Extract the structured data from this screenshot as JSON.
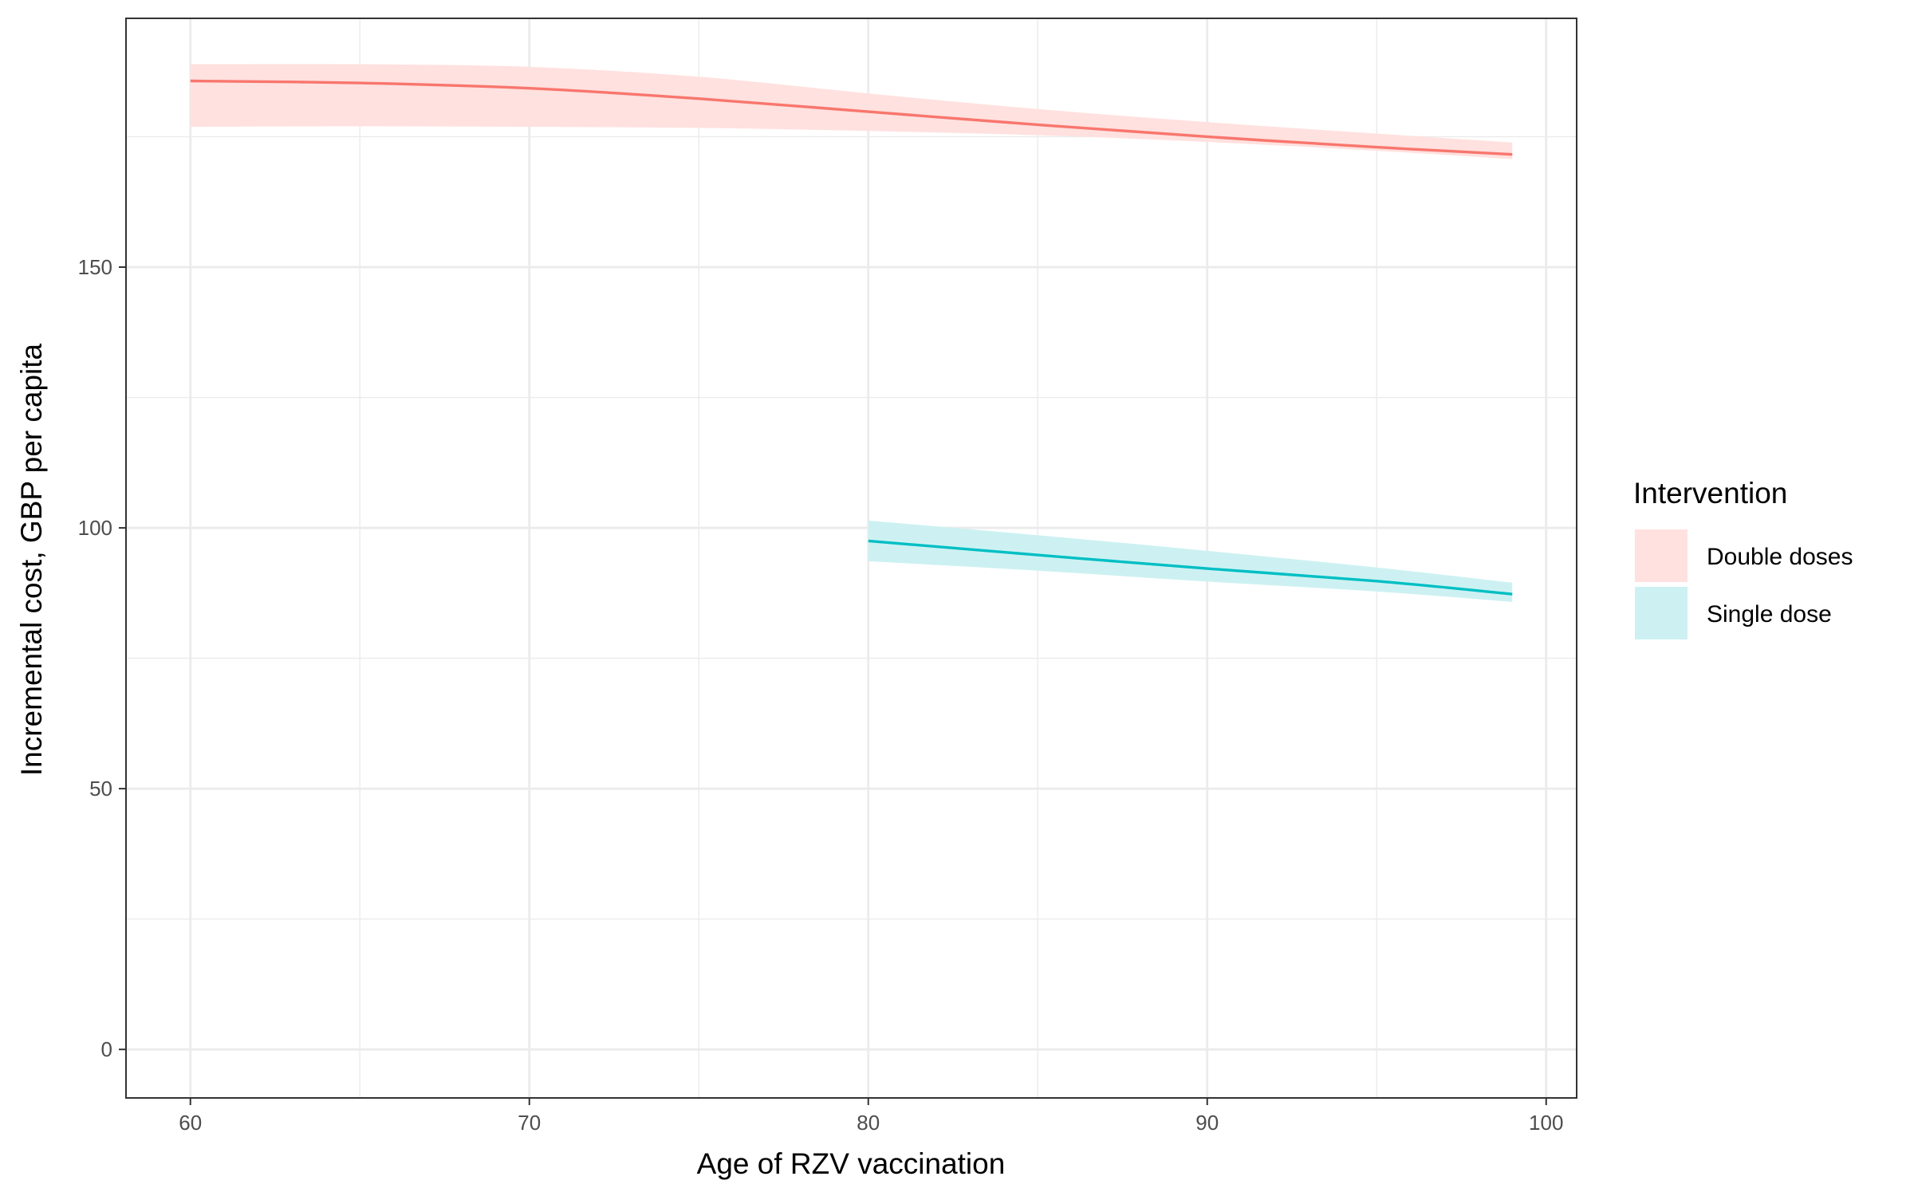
{
  "chart_data": {
    "type": "line",
    "title": "",
    "xlabel": "Age of RZV vaccination",
    "ylabel": "Incremental cost, GBP per capita",
    "xlim": [
      58.1,
      100.9
    ],
    "ylim": [
      -9.3,
      197.7
    ],
    "x_ticks": [
      60,
      70,
      80,
      90,
      100
    ],
    "y_ticks": [
      0,
      50,
      100,
      150
    ],
    "grid": true,
    "legend": {
      "title": "Intervention",
      "position": "right"
    },
    "series": [
      {
        "name": "Double doses",
        "color": "#F8766D",
        "ribbon_color": "#FFE1DF",
        "x": [
          60,
          65,
          70,
          75,
          80,
          85,
          90,
          95,
          99
        ],
        "y": [
          185.7,
          185.3,
          184.3,
          182.3,
          179.8,
          177.3,
          175.0,
          173.0,
          171.6
        ],
        "lower": [
          176.9,
          177.0,
          176.9,
          176.7,
          176.1,
          175.3,
          174.0,
          172.3,
          170.7
        ],
        "upper": [
          188.9,
          188.9,
          188.4,
          186.5,
          183.3,
          180.3,
          177.8,
          175.6,
          173.9
        ]
      },
      {
        "name": "Single dose",
        "color": "#00BFC4",
        "ribbon_color": "#CDF1F2",
        "x": [
          80,
          85,
          90,
          95,
          99
        ],
        "y": [
          97.5,
          94.8,
          92.2,
          89.8,
          87.3
        ],
        "lower": [
          93.6,
          91.8,
          89.7,
          87.8,
          85.8
        ],
        "upper": [
          101.4,
          98.6,
          95.6,
          92.4,
          89.5
        ]
      }
    ]
  }
}
